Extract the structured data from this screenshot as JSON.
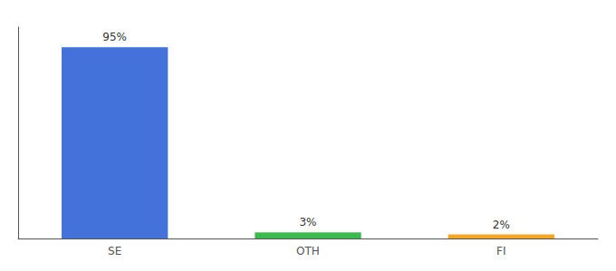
{
  "chart_data": {
    "type": "bar",
    "categories": [
      "SE",
      "OTH",
      "FI"
    ],
    "values": [
      95,
      3,
      2
    ],
    "value_labels": [
      "95%",
      "3%",
      "2%"
    ],
    "colors": [
      "#4472db",
      "#3dba4e",
      "#f5a623"
    ],
    "ylim": [
      0,
      105
    ],
    "grid": false,
    "data_labels": true,
    "tick_labels": "x"
  }
}
